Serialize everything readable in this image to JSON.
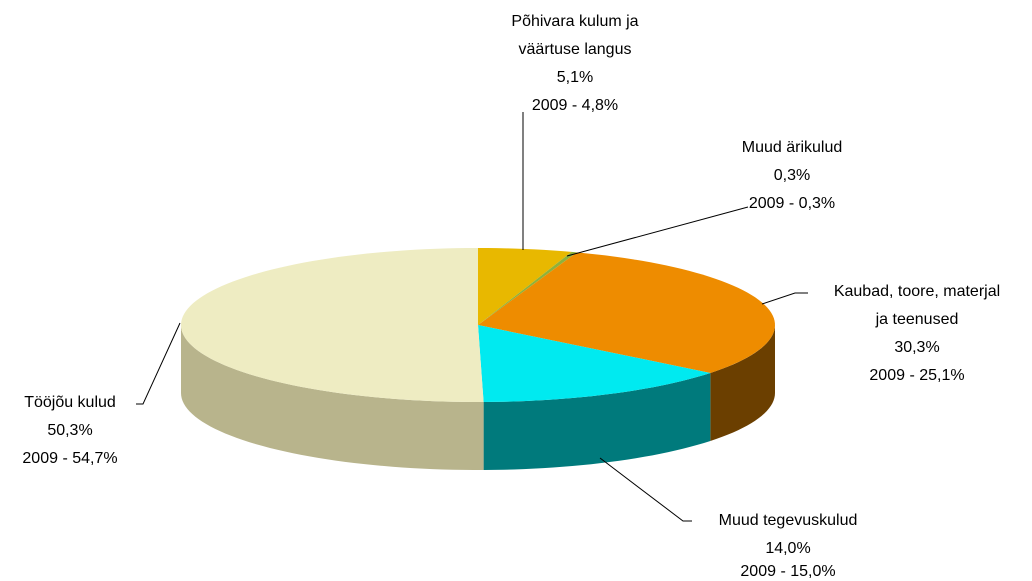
{
  "chart_data": {
    "type": "pie",
    "categories": [
      "Põhivara kulum ja väärtuse langus",
      "Muud ärikulud",
      "Kaubad, toore, materjal ja teenused",
      "Muud tegevuskulud",
      "Tööjõu kulud"
    ],
    "values": [
      5.1,
      0.3,
      30.3,
      14.0,
      50.3
    ],
    "value_labels": [
      "5,1%",
      "0,3%",
      "30,3%",
      "14,0%",
      "50,3%"
    ],
    "prior_value_labels": [
      "2009 - 4,8%",
      "2009 - 0,3%",
      "2009 - 25,1%",
      "2009 - 15,0%",
      "2009 - 54,7%"
    ],
    "colors": [
      "#e8b800",
      "#8fb23a",
      "#ee8c00",
      "#00eaf0",
      "#eeecc2"
    ],
    "side_colors": [
      "#9a7a00",
      "#5c7526",
      "#6b3f00",
      "#007a7c",
      "#b8b48c"
    ]
  }
}
